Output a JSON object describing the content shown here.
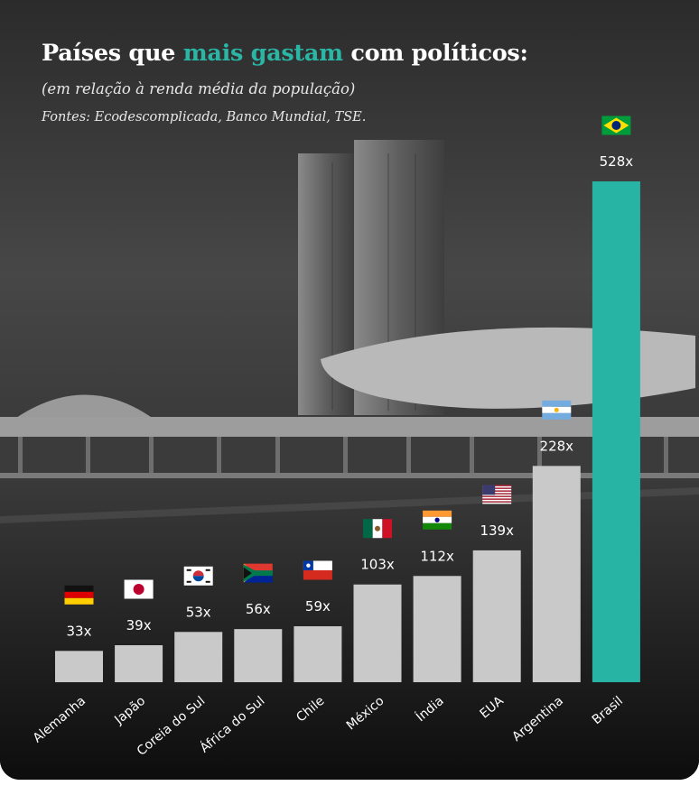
{
  "header": {
    "title_part1": "Países que",
    "title_accent": "mais gastam",
    "title_part2": "com políticos:",
    "subtitle": "(em relação à renda média da população)",
    "sources": "Fontes: Ecodescomplicada, Banco Mundial, TSE."
  },
  "colors": {
    "accent": "#2ab5a5",
    "bar_default": "#c9c9c9",
    "bar_highlight": "#28b4a4",
    "text": "#ffffff"
  },
  "chart_data": {
    "type": "bar",
    "title": "Países que mais gastam com políticos:",
    "subtitle": "(em relação à renda média da população)",
    "categories": [
      "Alemanha",
      "Japão",
      "Coreia do Sul",
      "África do Sul",
      "Chile",
      "México",
      "Índia",
      "EUA",
      "Argentina",
      "Brasil"
    ],
    "values": [
      33,
      39,
      53,
      56,
      59,
      103,
      112,
      139,
      228,
      528
    ],
    "value_labels": [
      "33x",
      "39x",
      "53x",
      "56x",
      "59x",
      "103x",
      "112x",
      "139x",
      "228x",
      "528x"
    ],
    "flags": [
      "germany-flag",
      "japan-flag",
      "south-korea-flag",
      "south-africa-flag",
      "chile-flag",
      "mexico-flag",
      "india-flag",
      "usa-flag",
      "argentina-flag",
      "brazil-flag"
    ],
    "highlight": "Brasil",
    "ylim": [
      0,
      528
    ],
    "grid": false,
    "legend": "none"
  }
}
